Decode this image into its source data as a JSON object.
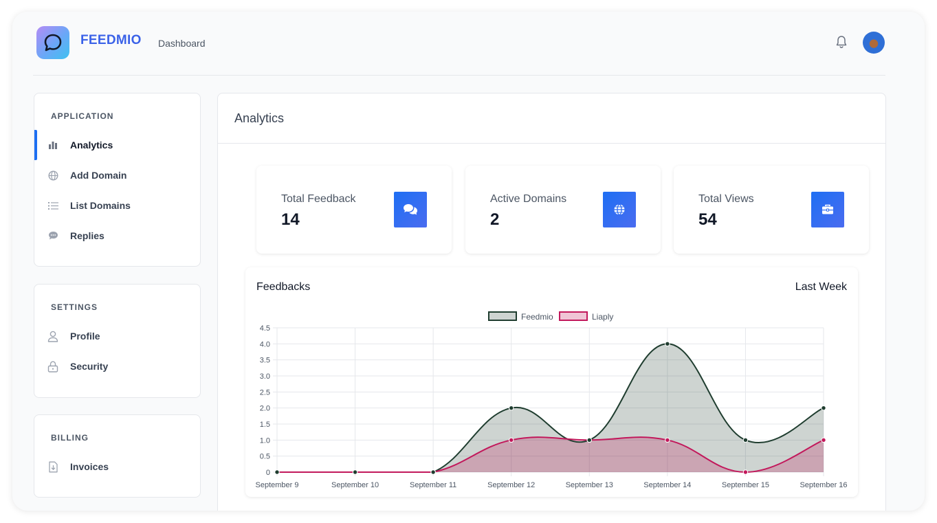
{
  "header": {
    "brand": "FEEDMIO",
    "nav": "Dashboard"
  },
  "sidebar": {
    "application": {
      "title": "APPLICATION",
      "items": [
        {
          "label": "Analytics",
          "icon": "bar-chart-icon"
        },
        {
          "label": "Add Domain",
          "icon": "globe-icon"
        },
        {
          "label": "List Domains",
          "icon": "list-icon"
        },
        {
          "label": "Replies",
          "icon": "chat-bubble-icon"
        }
      ]
    },
    "settings": {
      "title": "SETTINGS",
      "items": [
        {
          "label": "Profile",
          "icon": "user-icon"
        },
        {
          "label": "Security",
          "icon": "lock-icon"
        }
      ]
    },
    "billing": {
      "title": "BILLING",
      "items": [
        {
          "label": "Invoices",
          "icon": "invoice-icon"
        }
      ]
    }
  },
  "main": {
    "title": "Analytics",
    "stats": [
      {
        "label": "Total Feedback",
        "value": "14",
        "icon": "chat-bubbles-icon"
      },
      {
        "label": "Active Domains",
        "value": "2",
        "icon": "globe-icon"
      },
      {
        "label": "Total Views",
        "value": "54",
        "icon": "toolbox-icon"
      }
    ],
    "chart": {
      "title": "Feedbacks",
      "range": "Last Week"
    }
  },
  "colors": {
    "accent": "#1d6ff2",
    "brand": "#3b62e8",
    "feedmio_line": "#1f3d2f",
    "liaply_line": "#c2185b"
  },
  "chart_data": {
    "type": "area",
    "categories": [
      "September 9",
      "September 10",
      "September 11",
      "September 12",
      "September 13",
      "September 14",
      "September 15",
      "September 16"
    ],
    "series": [
      {
        "name": "Feedmio",
        "values": [
          0,
          0,
          0,
          2,
          1,
          4,
          1,
          2
        ],
        "color": "#1f3d2f",
        "fill": "rgba(31,61,47,0.22)"
      },
      {
        "name": "Liaply",
        "values": [
          0,
          0,
          0,
          1,
          1,
          1,
          0,
          1
        ],
        "color": "#c2185b",
        "fill": "rgba(194,24,91,0.25)"
      }
    ],
    "yticks": [
      "0",
      "0.5",
      "1.0",
      "1.5",
      "2.0",
      "2.5",
      "3.0",
      "3.5",
      "4.0",
      "4.5"
    ],
    "ylim": [
      0,
      4.5
    ],
    "grid": true,
    "legend": "top-center"
  }
}
